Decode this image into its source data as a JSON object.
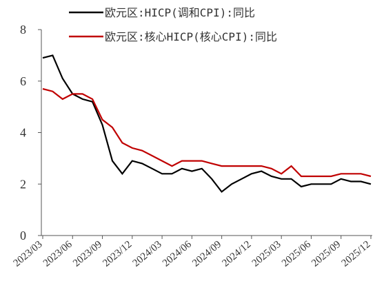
{
  "chart_data": {
    "type": "line",
    "categories": [
      "2023/03",
      null,
      null,
      "2023/06",
      null,
      null,
      "2023/09",
      null,
      null,
      "2023/12",
      null,
      null,
      "2024/03",
      null,
      null,
      "2024/06",
      null,
      null,
      "2024/09",
      null,
      null,
      "2024/12",
      null,
      null,
      "2025/03",
      null,
      null,
      "2025/06",
      null,
      null,
      "2025/09",
      null,
      null,
      "2025/12"
    ],
    "series": [
      {
        "name": "欧元区:HICP(调和CPI):同比",
        "color": "#000000",
        "values": [
          6.9,
          7.0,
          6.1,
          5.5,
          5.3,
          5.2,
          4.3,
          2.9,
          2.4,
          2.9,
          2.8,
          2.6,
          2.4,
          2.4,
          2.6,
          2.5,
          2.6,
          2.2,
          1.7,
          2.0,
          2.2,
          2.4,
          2.5,
          2.3,
          2.2,
          2.2,
          1.9,
          2.0,
          2.0,
          2.0,
          2.2,
          2.1,
          2.1,
          2.0
        ]
      },
      {
        "name": "欧元区:核心HICP(核心CPI):同比",
        "color": "#c00000",
        "values": [
          5.7,
          5.6,
          5.3,
          5.5,
          5.5,
          5.3,
          4.5,
          4.2,
          3.6,
          3.4,
          3.3,
          3.1,
          2.9,
          2.7,
          2.9,
          2.9,
          2.9,
          2.8,
          2.7,
          2.7,
          2.7,
          2.7,
          2.7,
          2.6,
          2.4,
          2.7,
          2.3,
          2.3,
          2.3,
          2.3,
          2.4,
          2.4,
          2.4,
          2.3
        ]
      }
    ],
    "ylim": [
      0,
      8
    ],
    "yticks": [
      0,
      2,
      4,
      6,
      8
    ]
  }
}
